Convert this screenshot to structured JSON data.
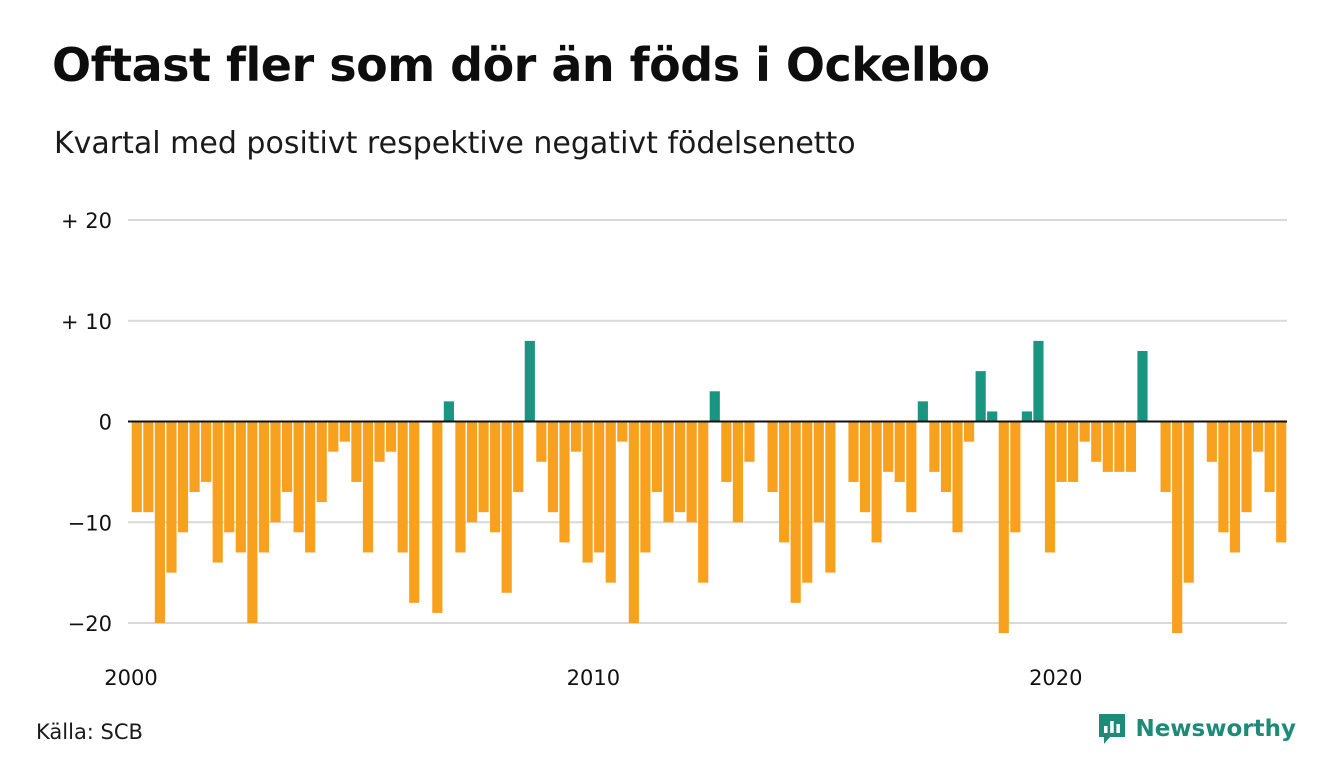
{
  "header": {
    "title": "Oftast fler som dör än föds i Ockelbo",
    "subtitle": "Kvartal med positivt respektive negativt födelsenetto"
  },
  "footer": {
    "source": "Källa: SCB",
    "brand": "Newsworthy",
    "brand_icon": "newsworthy-chart-bubble-icon"
  },
  "colors": {
    "positive": "#1a9582",
    "negative": "#f7a11f",
    "grid": "#d9d9d9",
    "zero_line": "#111111",
    "brand": "#1e8a78"
  },
  "chart_data": {
    "type": "bar",
    "title": "Oftast fler som dör än föds i Ockelbo",
    "subtitle": "Kvartal med positivt respektive negativt födelsenetto",
    "xlabel": "",
    "ylabel": "",
    "ylim": [
      -23,
      20
    ],
    "y_ticks": [
      {
        "value": 20,
        "label": "+ 20"
      },
      {
        "value": 10,
        "label": "+ 10"
      },
      {
        "value": 0,
        "label": "0"
      },
      {
        "value": -10,
        "label": "−10"
      },
      {
        "value": -20,
        "label": "−20"
      }
    ],
    "x_ticks": [
      {
        "value": 2000,
        "label": "2000"
      },
      {
        "value": 2010,
        "label": "2010"
      },
      {
        "value": 2020,
        "label": "2020"
      }
    ],
    "x_start": "2000 Q1",
    "quarters_per_year": 4,
    "grid": true,
    "legend": "none",
    "values": [
      -9,
      -9,
      -20,
      -15,
      -11,
      -7,
      -6,
      -14,
      -11,
      -13,
      -20,
      -13,
      -10,
      -7,
      -11,
      -13,
      -8,
      -3,
      -2,
      -6,
      -13,
      -4,
      -3,
      -13,
      -18,
      0,
      -19,
      2,
      -13,
      -10,
      -9,
      -11,
      -17,
      -7,
      8,
      -4,
      -9,
      -12,
      -3,
      -14,
      -13,
      -16,
      -2,
      -20,
      -13,
      -7,
      -10,
      -9,
      -10,
      -16,
      3,
      -6,
      -10,
      -4,
      0,
      -7,
      -12,
      -18,
      -16,
      -10,
      -15,
      0,
      -6,
      -9,
      -12,
      -5,
      -6,
      -9,
      2,
      -5,
      -7,
      -11,
      -2,
      5,
      1,
      -21,
      -11,
      1,
      8,
      -13,
      -6,
      -6,
      -2,
      -4,
      -5,
      -5,
      -5,
      7,
      0,
      -7,
      -21,
      -16,
      0,
      -4,
      -11,
      -13,
      -9,
      -3,
      -7,
      -12
    ]
  }
}
